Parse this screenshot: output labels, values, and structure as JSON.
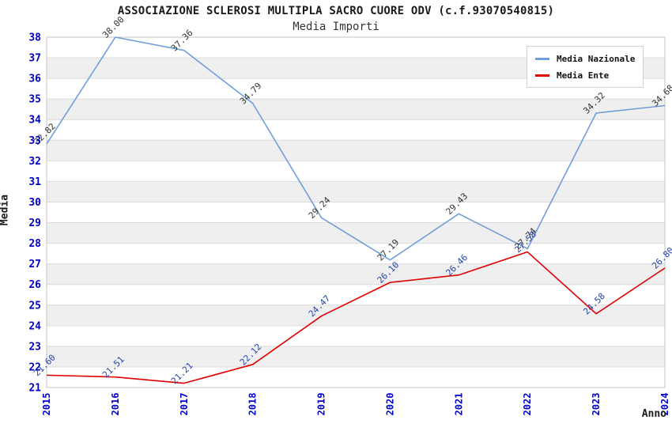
{
  "chart_data": {
    "type": "line",
    "title": "ASSOCIAZIONE SCLEROSI MULTIPLA SACRO CUORE ODV (c.f.93070540815)",
    "subtitle": "Media Importi",
    "xlabel": "Anno",
    "ylabel": "Media",
    "x": [
      "2015",
      "2016",
      "2017",
      "2018",
      "2019",
      "2020",
      "2021",
      "2022",
      "2023",
      "2024"
    ],
    "ylim": [
      21,
      38
    ],
    "y_tick_step": 1,
    "grid": "horizontal-bands",
    "band_colors": [
      "#ffffff",
      "#efefef"
    ],
    "gridline_color": "#dcdcdc",
    "border_color": "#c4c4c4",
    "tick_color": "#0000cc",
    "legend_position": "top-right",
    "series": [
      {
        "name": "Media Nazionale",
        "color": "#6f9fd8",
        "label_color": "#333333",
        "values": [
          32.82,
          38.0,
          37.36,
          34.79,
          29.24,
          27.19,
          29.43,
          27.74,
          34.32,
          34.68
        ]
      },
      {
        "name": "Media Ente",
        "color": "#e00000",
        "label_color": "#2244aa",
        "values": [
          21.6,
          21.51,
          21.21,
          22.12,
          24.47,
          26.1,
          26.46,
          27.58,
          24.58,
          26.8
        ]
      }
    ]
  }
}
